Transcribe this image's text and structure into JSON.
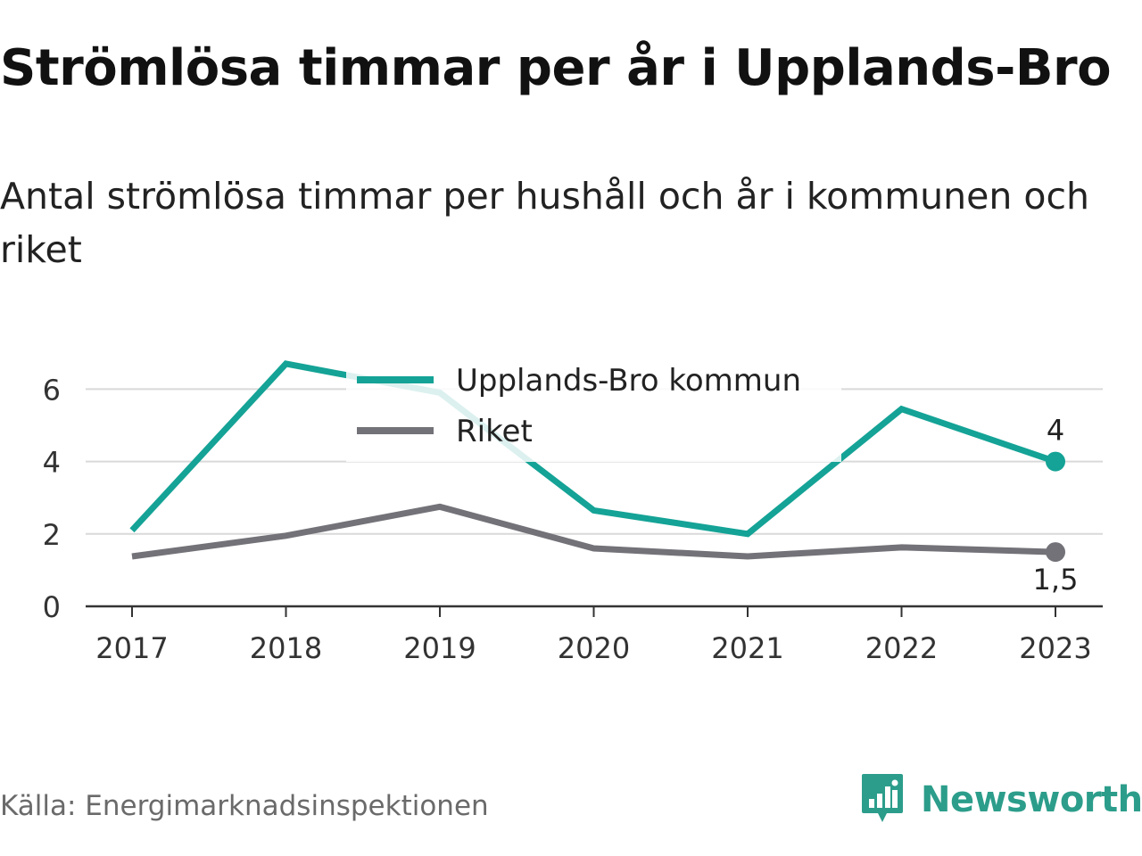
{
  "header": {
    "title": "Strömlösa timmar per år i Upplands-Bro",
    "subtitle": "Antal strömlösa timmar per hushåll och år i kommunen och riket"
  },
  "footer": {
    "source": "Källa: Energimarknadsinspektionen",
    "brand": "Newsworthy"
  },
  "colors": {
    "kommun": "#14a396",
    "riket": "#737278",
    "grid": "#d9d9d9",
    "axis": "#333333"
  },
  "chart_data": {
    "type": "line",
    "x": [
      "2017",
      "2018",
      "2019",
      "2020",
      "2021",
      "2022",
      "2023"
    ],
    "ylim": [
      0,
      7
    ],
    "yticks": [
      "0",
      "2",
      "4",
      "6"
    ],
    "grid": "horizontal",
    "legend_position": "top-center",
    "series": [
      {
        "name": "Upplands-Bro kommun",
        "values": [
          2.1,
          6.7,
          5.9,
          2.65,
          2.0,
          5.45,
          4.0
        ],
        "end_label": "4"
      },
      {
        "name": "Riket",
        "values": [
          1.38,
          1.95,
          2.75,
          1.6,
          1.38,
          1.63,
          1.5
        ],
        "end_label": "1,5"
      }
    ]
  }
}
